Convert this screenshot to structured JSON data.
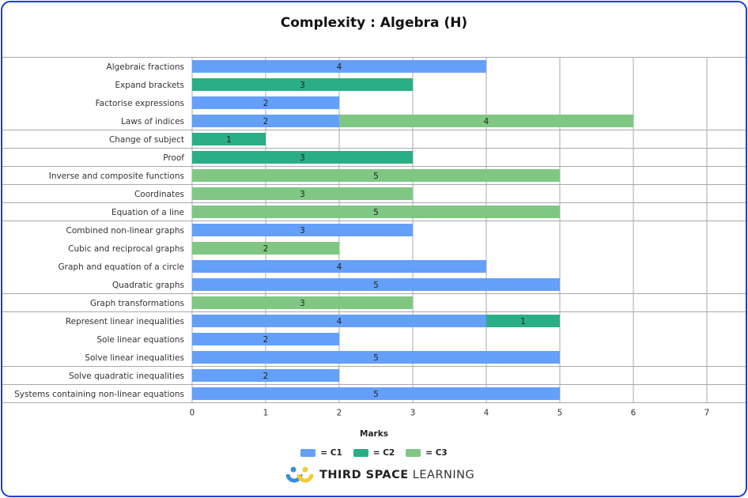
{
  "chart_data": {
    "type": "bar",
    "orientation": "horizontal",
    "stacked": true,
    "title": "Complexity : Algebra (H)",
    "xlabel": "Marks",
    "ylabel": "",
    "xlim": [
      0,
      7.5
    ],
    "xticks": [
      0,
      1,
      2,
      3,
      4,
      5,
      6,
      7
    ],
    "grid": true,
    "legend_position": "bottom",
    "categories": [
      "Algebraic fractions",
      "Expand brackets",
      "Factorise expressions",
      "Laws of indices",
      "Change of subject",
      "Proof",
      "Inverse and composite functions",
      "Coordinates",
      "Equation of a line",
      "Combined non-linear graphs",
      "Cubic and reciprocal graphs",
      "Graph and equation of a circle",
      "Quadratic graphs",
      "Graph transformations",
      "Represent linear inequalities",
      "Sole linear equations",
      "Solve linear inequalities",
      "Solve quadratic inequalities",
      "Systems containing non-linear equations"
    ],
    "series": [
      {
        "name": "= C1",
        "color": "#64a0f9",
        "values": [
          4,
          0,
          2,
          2,
          0,
          0,
          0,
          0,
          0,
          3,
          0,
          4,
          5,
          0,
          4,
          2,
          5,
          2,
          5
        ]
      },
      {
        "name": "= C2",
        "color": "#2aae86",
        "values": [
          0,
          3,
          0,
          0,
          1,
          3,
          0,
          0,
          0,
          0,
          0,
          0,
          0,
          0,
          1,
          0,
          0,
          0,
          0
        ]
      },
      {
        "name": "= C3",
        "color": "#80c784",
        "values": [
          0,
          0,
          0,
          4,
          0,
          0,
          5,
          3,
          5,
          0,
          2,
          0,
          0,
          3,
          0,
          0,
          0,
          0,
          0
        ]
      }
    ]
  },
  "branding": {
    "logo_bold": "THIRD SPACE",
    "logo_light": "LEARNING"
  }
}
